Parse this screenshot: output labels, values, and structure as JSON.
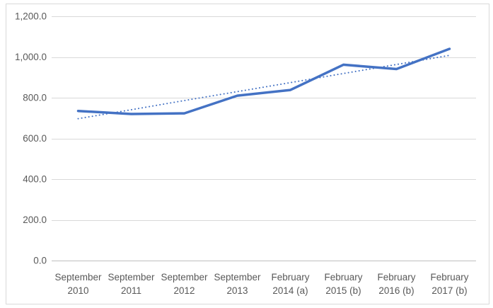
{
  "chart": {
    "background": "#FFFFFF",
    "frame_color": "#D9D9D9"
  },
  "chart_data": {
    "type": "line",
    "title": "",
    "xlabel": "",
    "ylabel": "",
    "categories": [
      "September 2010",
      "September 2011",
      "September 2012",
      "September 2013",
      "February 2014 (a)",
      "February 2015 (b)",
      "February 2016 (b)",
      "February 2017 (b)"
    ],
    "series": [
      {
        "name": "data-series",
        "style": "solid",
        "color": "#4472C4",
        "stroke_width": 3.5,
        "values": [
          735,
          720,
          723,
          810,
          838,
          962,
          941,
          1040
        ]
      },
      {
        "name": "linear-trendline",
        "style": "dotted",
        "color": "#4472C4",
        "stroke_width": 2,
        "values": [
          697,
          741,
          786,
          830,
          874,
          919,
          963,
          1008
        ]
      }
    ],
    "ylim": [
      0,
      1200
    ],
    "ytick_step": 200,
    "yticks": [
      {
        "value": 0,
        "label": "0.0"
      },
      {
        "value": 200,
        "label": "200.0"
      },
      {
        "value": 400,
        "label": "400.0"
      },
      {
        "value": 600,
        "label": "600.0"
      },
      {
        "value": 800,
        "label": "800.0"
      },
      {
        "value": 1000,
        "label": "1,000.0"
      },
      {
        "value": 1200,
        "label": "1,200.0"
      }
    ],
    "grid": true,
    "legend": "none",
    "tick_label_color": "#595959",
    "gridline_color": "#D9D9D9",
    "axis_line_color": "#BFBFBF"
  }
}
